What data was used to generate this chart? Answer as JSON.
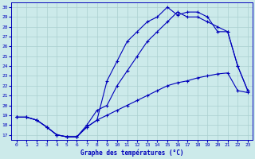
{
  "xlabel": "Graphe des températures (°C)",
  "ylabel_ticks": [
    17,
    18,
    19,
    20,
    21,
    22,
    23,
    24,
    25,
    26,
    27,
    28,
    29,
    30
  ],
  "x_ticks": [
    0,
    1,
    2,
    3,
    4,
    5,
    6,
    7,
    8,
    9,
    10,
    11,
    12,
    13,
    14,
    15,
    16,
    17,
    18,
    19,
    20,
    21,
    22,
    23
  ],
  "xlim": [
    -0.5,
    23.5
  ],
  "ylim": [
    16.5,
    30.5
  ],
  "bg_color": "#cceaea",
  "grid_color": "#aad0d0",
  "line_color": "#0000bb",
  "curve1_x": [
    0,
    1,
    2,
    3,
    4,
    5,
    6,
    7,
    8,
    9,
    10,
    11,
    12,
    13,
    14,
    15,
    16,
    17,
    18,
    19,
    20,
    21,
    22,
    23
  ],
  "curve1_y": [
    18.8,
    18.8,
    18.5,
    17.8,
    17.0,
    16.8,
    16.8,
    17.8,
    18.5,
    22.5,
    24.5,
    26.5,
    27.5,
    28.5,
    29.0,
    30.0,
    29.2,
    29.5,
    29.5,
    29.0,
    27.5,
    27.5,
    24.0,
    21.5
  ],
  "curve2_x": [
    0,
    1,
    2,
    3,
    4,
    5,
    6,
    7,
    8,
    9,
    10,
    11,
    12,
    13,
    14,
    15,
    16,
    17,
    18,
    19,
    20,
    21,
    22,
    23
  ],
  "curve2_y": [
    18.8,
    18.8,
    18.5,
    17.8,
    17.0,
    16.8,
    16.8,
    18.0,
    19.5,
    20.0,
    22.0,
    23.5,
    25.0,
    26.5,
    27.5,
    28.5,
    29.5,
    29.0,
    29.0,
    28.5,
    28.0,
    27.5,
    24.0,
    21.5
  ],
  "curve3_x": [
    0,
    1,
    2,
    3,
    4,
    5,
    6,
    7,
    8,
    9,
    10,
    11,
    12,
    13,
    14,
    15,
    16,
    17,
    18,
    19,
    20,
    21,
    22,
    23
  ],
  "curve3_y": [
    18.8,
    18.8,
    18.5,
    17.8,
    17.0,
    16.8,
    16.8,
    17.8,
    18.5,
    19.0,
    19.5,
    20.0,
    20.5,
    21.0,
    21.5,
    22.0,
    22.3,
    22.5,
    22.8,
    23.0,
    23.2,
    23.3,
    21.5,
    21.3
  ]
}
